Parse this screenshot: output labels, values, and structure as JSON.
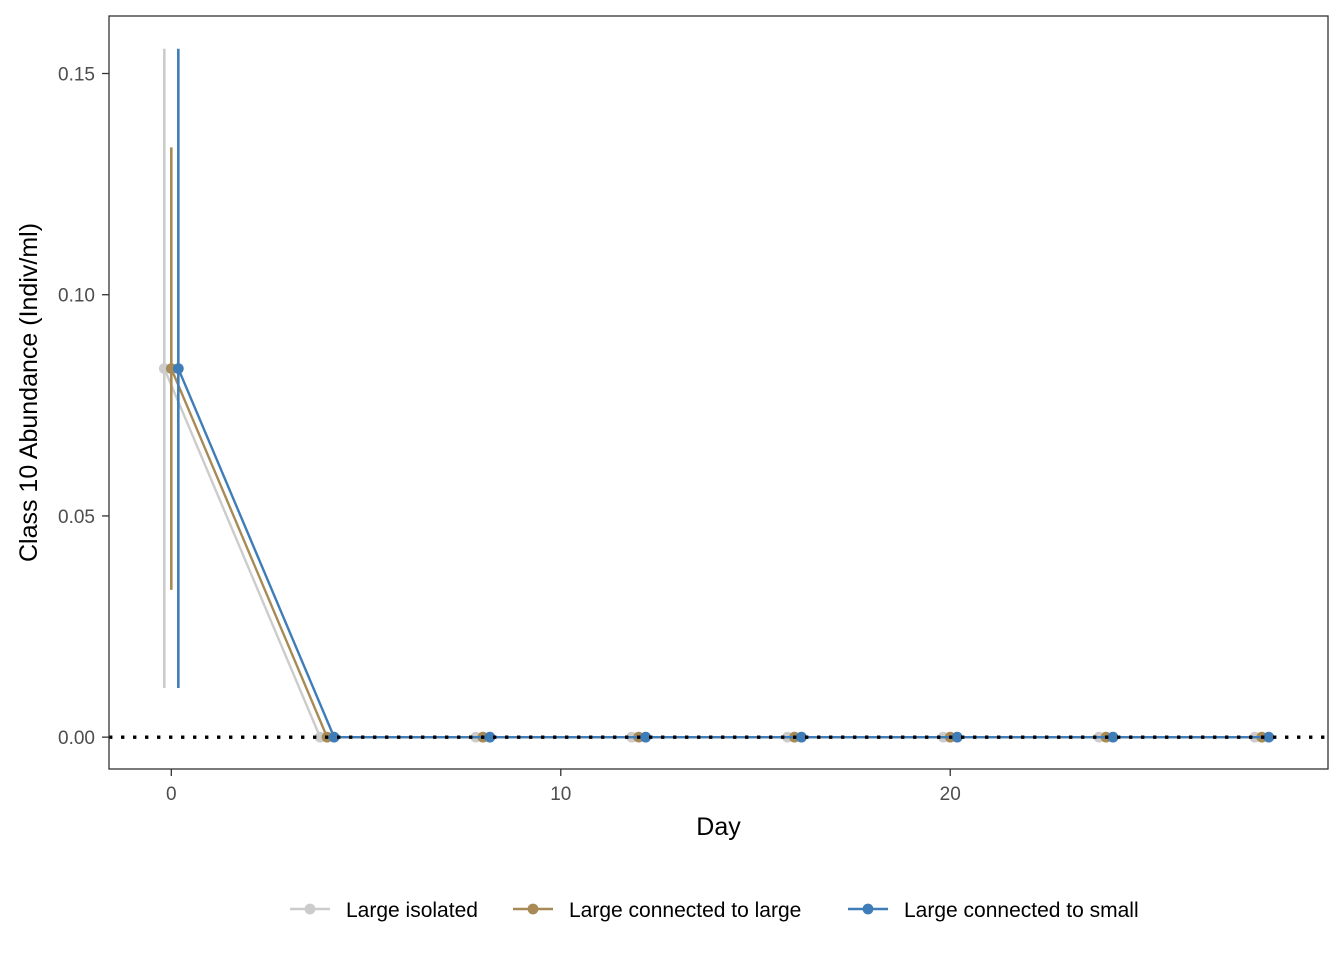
{
  "chart_data": {
    "type": "line",
    "title": "",
    "xlabel": "Day",
    "ylabel": "Class 10 Abundance (Indiv/ml)",
    "xlim": [
      -1.6,
      29.7
    ],
    "ylim": [
      -0.0072,
      0.163
    ],
    "x_ticks": [
      0,
      10,
      20
    ],
    "x_tick_labels": [
      "0",
      "10",
      "20"
    ],
    "y_ticks": [
      0.0,
      0.05,
      0.1,
      0.15
    ],
    "y_tick_labels": [
      "0.00",
      "0.05",
      "0.10",
      "0.15"
    ],
    "grid": false,
    "legend_position": "bottom",
    "reference_line": {
      "y": 0,
      "style": "dotted",
      "color": "#000000"
    },
    "x": [
      0,
      4,
      8,
      12,
      16,
      20,
      24,
      28
    ],
    "series": [
      {
        "name": "Large isolated",
        "color": "#cccccc",
        "dodge": -0.18,
        "values": [
          0.0833,
          0,
          0,
          0,
          0,
          0,
          0,
          0
        ],
        "error_bars": [
          {
            "x": 0,
            "low": 0.0111,
            "high": 0.1556
          }
        ]
      },
      {
        "name": "Large connected to large",
        "color": "#a88a56",
        "dodge": 0.0,
        "values": [
          0.0833,
          0,
          0,
          0,
          0,
          0,
          0,
          0
        ],
        "error_bars": [
          {
            "x": 0,
            "low": 0.0333,
            "high": 0.1333
          }
        ]
      },
      {
        "name": "Large connected to small",
        "color": "#3f7db8",
        "dodge": 0.18,
        "values": [
          0.0833,
          0,
          0,
          0,
          0,
          0,
          0,
          0
        ],
        "error_bars": [
          {
            "x": 0,
            "low": 0.0111,
            "high": 0.1556
          }
        ]
      }
    ]
  }
}
